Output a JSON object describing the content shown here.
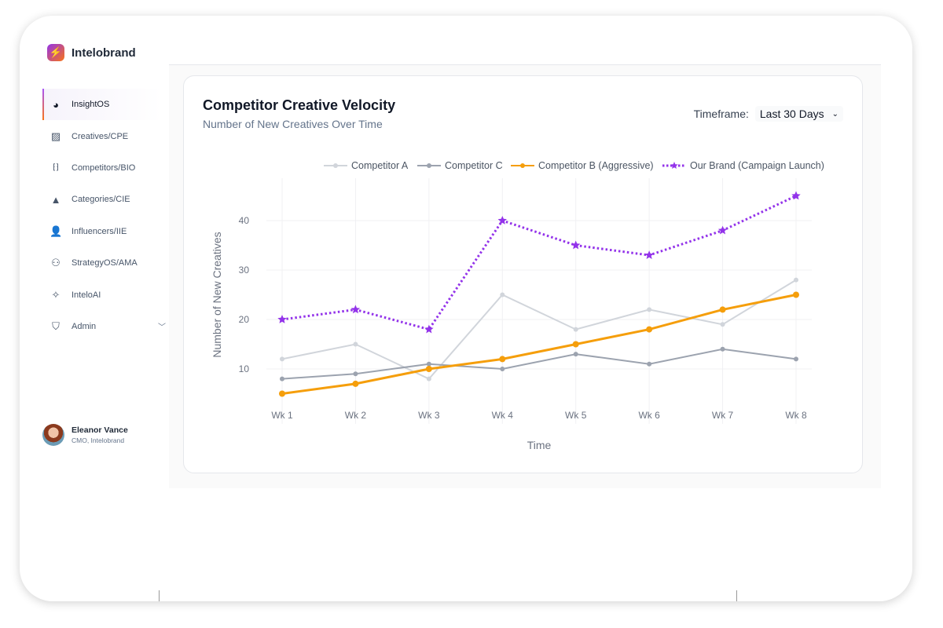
{
  "app": {
    "name": "Intelobrand",
    "logo_icon": "lightning-icon"
  },
  "sidebar": {
    "items": [
      {
        "label": "InsightOS",
        "icon": "pie-chart-icon",
        "active": true
      },
      {
        "label": "Creatives/CPE",
        "icon": "image-icon"
      },
      {
        "label": "Competitors/BIO",
        "icon": "group-scan-icon"
      },
      {
        "label": "Categories/CIE",
        "icon": "shapes-icon"
      },
      {
        "label": "Influencers/IIE",
        "icon": "user-check-icon"
      },
      {
        "label": "StrategyOS/AMA",
        "icon": "hierarchy-icon"
      },
      {
        "label": "InteloAI",
        "icon": "magic-wand-icon"
      },
      {
        "label": "Admin",
        "icon": "shield-icon"
      }
    ]
  },
  "user": {
    "name": "Eleanor Vance",
    "role": "CMO, Intelobrand"
  },
  "card": {
    "title": "Competitor Creative Velocity",
    "subtitle": "Number of New Creatives Over Time",
    "timeframe_label": "Timeframe:",
    "timeframe_value": "Last 30 Days"
  },
  "chart_data": {
    "type": "line",
    "title": "Competitor Creative Velocity",
    "xlabel": "Time",
    "ylabel": "Number of New Creatives",
    "categories": [
      "Wk 1",
      "Wk 2",
      "Wk 3",
      "Wk 4",
      "Wk 5",
      "Wk 6",
      "Wk 7",
      "Wk 8"
    ],
    "yticks": [
      10,
      20,
      30,
      40
    ],
    "ylim": [
      0.5,
      50
    ],
    "legend_position": "top",
    "series": [
      {
        "name": "Competitor A",
        "color": "#d1d5db",
        "values": [
          12,
          15,
          8,
          25,
          18,
          22,
          19,
          28
        ],
        "marker": "circle",
        "dash": "solid"
      },
      {
        "name": "Competitor C",
        "color": "#9ca3af",
        "values": [
          8,
          9,
          11,
          10,
          13,
          11,
          14,
          12
        ],
        "marker": "circle",
        "dash": "solid"
      },
      {
        "name": "Competitor B (Aggressive)",
        "color": "#f59e0b",
        "values": [
          5,
          7,
          10,
          12,
          15,
          18,
          22,
          25
        ],
        "marker": "circle",
        "dash": "solid"
      },
      {
        "name": "Our Brand (Campaign Launch)",
        "color": "#9333ea",
        "values": [
          20,
          22,
          18,
          40,
          35,
          33,
          38,
          45
        ],
        "marker": "star",
        "dash": "dot"
      }
    ]
  }
}
